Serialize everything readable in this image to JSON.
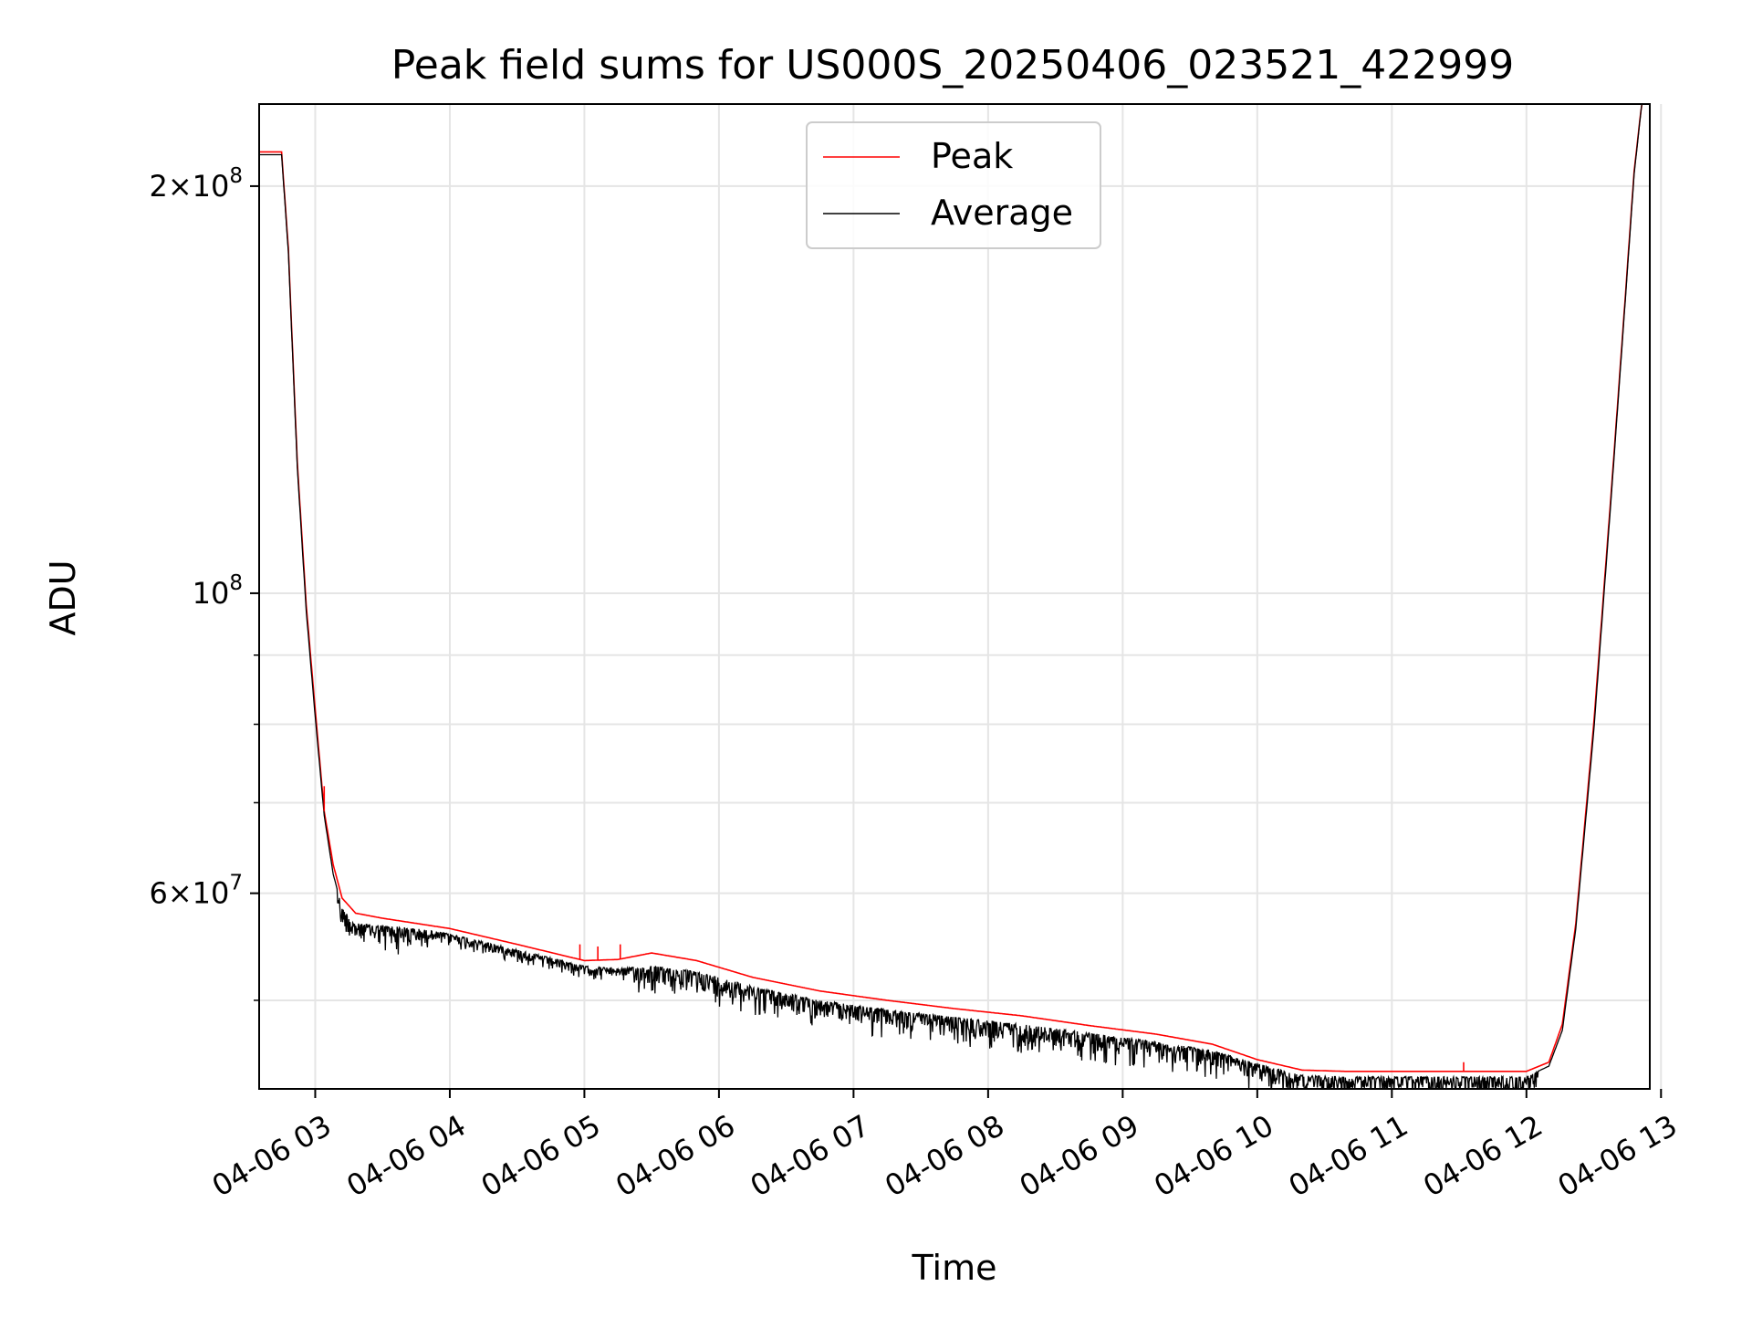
{
  "chart_data": {
    "type": "line",
    "title": "Peak field sums for US000S_20250406_023521_422999",
    "xlabel": "Time",
    "ylabel": "ADU",
    "yscale": "log",
    "grid": true,
    "legend_position": "upper center",
    "xlim": [
      "2025-04-06 02:35",
      "2025-04-06 12:55"
    ],
    "ylim": [
      43000000,
      230000000
    ],
    "x_ticks": [
      {
        "value": "2025-04-06 03:00",
        "label": "04-06 03"
      },
      {
        "value": "2025-04-06 04:00",
        "label": "04-06 04"
      },
      {
        "value": "2025-04-06 05:00",
        "label": "04-06 05"
      },
      {
        "value": "2025-04-06 06:00",
        "label": "04-06 06"
      },
      {
        "value": "2025-04-06 07:00",
        "label": "04-06 07"
      },
      {
        "value": "2025-04-06 08:00",
        "label": "04-06 08"
      },
      {
        "value": "2025-04-06 09:00",
        "label": "04-06 09"
      },
      {
        "value": "2025-04-06 10:00",
        "label": "04-06 10"
      },
      {
        "value": "2025-04-06 11:00",
        "label": "04-06 11"
      },
      {
        "value": "2025-04-06 12:00",
        "label": "04-06 12"
      },
      {
        "value": "2025-04-06 13:00",
        "label": "04-06 13"
      }
    ],
    "y_major_ticks": [
      {
        "value": 200000000,
        "mantissa": "2",
        "times": "×",
        "base": "10",
        "exp": "8"
      },
      {
        "value": 100000000,
        "mantissa": "",
        "times": "",
        "base": "10",
        "exp": "8"
      },
      {
        "value": 60000000,
        "mantissa": "6",
        "times": "×",
        "base": "10",
        "exp": "7"
      }
    ],
    "y_minor_ticks": [
      50000000,
      70000000,
      80000000,
      90000000
    ],
    "series": [
      {
        "name": "Peak",
        "color": "#ff0000",
        "points": [
          [
            "2025-04-06 02:35",
            212000000
          ],
          [
            "2025-04-06 02:45",
            212000000
          ],
          [
            "2025-04-06 02:48",
            180000000
          ],
          [
            "2025-04-06 02:52",
            125000000
          ],
          [
            "2025-04-06 02:56",
            98000000
          ],
          [
            "2025-04-06 03:00",
            82000000
          ],
          [
            "2025-04-06 03:04",
            69000000
          ],
          [
            "2025-04-06 03:08",
            63000000
          ],
          [
            "2025-04-06 03:12",
            59500000
          ],
          [
            "2025-04-06 03:18",
            58000000
          ],
          [
            "2025-04-06 03:30",
            57500000
          ],
          [
            "2025-04-06 03:45",
            57000000
          ],
          [
            "2025-04-06 04:00",
            56500000
          ],
          [
            "2025-04-06 04:30",
            55000000
          ],
          [
            "2025-04-06 05:00",
            53500000
          ],
          [
            "2025-04-06 05:15",
            53600000
          ],
          [
            "2025-04-06 05:30",
            54200000
          ],
          [
            "2025-04-06 05:50",
            53500000
          ],
          [
            "2025-04-06 06:15",
            52000000
          ],
          [
            "2025-04-06 06:45",
            50800000
          ],
          [
            "2025-04-06 07:15",
            50000000
          ],
          [
            "2025-04-06 07:45",
            49300000
          ],
          [
            "2025-04-06 08:15",
            48700000
          ],
          [
            "2025-04-06 08:45",
            47900000
          ],
          [
            "2025-04-06 09:15",
            47200000
          ],
          [
            "2025-04-06 09:40",
            46400000
          ],
          [
            "2025-04-06 10:00",
            45200000
          ],
          [
            "2025-04-06 10:20",
            44400000
          ],
          [
            "2025-04-06 10:40",
            44300000
          ],
          [
            "2025-04-06 11:00",
            44300000
          ],
          [
            "2025-04-06 11:30",
            44300000
          ],
          [
            "2025-04-06 12:00",
            44300000
          ],
          [
            "2025-04-06 12:10",
            45000000
          ],
          [
            "2025-04-06 12:16",
            48000000
          ],
          [
            "2025-04-06 12:22",
            57000000
          ],
          [
            "2025-04-06 12:30",
            80000000
          ],
          [
            "2025-04-06 12:38",
            120000000
          ],
          [
            "2025-04-06 12:44",
            165000000
          ],
          [
            "2025-04-06 12:48",
            205000000
          ],
          [
            "2025-04-06 12:52",
            235000000
          ]
        ],
        "spikes": [
          [
            "2025-04-06 03:04",
            72000000
          ],
          [
            "2025-04-06 04:58",
            55000000
          ],
          [
            "2025-04-06 05:06",
            54800000
          ],
          [
            "2025-04-06 05:16",
            55000000
          ],
          [
            "2025-04-06 11:32",
            45000000
          ]
        ]
      },
      {
        "name": "Average",
        "color": "#000000",
        "points": [
          [
            "2025-04-06 02:35",
            211000000
          ],
          [
            "2025-04-06 02:45",
            211000000
          ],
          [
            "2025-04-06 02:48",
            179000000
          ],
          [
            "2025-04-06 02:52",
            124000000
          ],
          [
            "2025-04-06 02:56",
            97000000
          ],
          [
            "2025-04-06 03:00",
            81000000
          ],
          [
            "2025-04-06 03:04",
            68500000
          ],
          [
            "2025-04-06 03:08",
            62000000
          ],
          [
            "2025-04-06 03:12",
            58500000
          ],
          [
            "2025-04-06 03:18",
            57000000
          ],
          [
            "2025-04-06 03:30",
            56800000
          ],
          [
            "2025-04-06 03:45",
            56500000
          ],
          [
            "2025-04-06 04:00",
            56000000
          ],
          [
            "2025-04-06 04:30",
            54500000
          ],
          [
            "2025-04-06 05:00",
            53000000
          ],
          [
            "2025-04-06 05:15",
            52800000
          ],
          [
            "2025-04-06 05:30",
            53000000
          ],
          [
            "2025-04-06 05:50",
            52500000
          ],
          [
            "2025-04-06 06:15",
            51200000
          ],
          [
            "2025-04-06 06:45",
            50000000
          ],
          [
            "2025-04-06 07:15",
            49200000
          ],
          [
            "2025-04-06 07:45",
            48600000
          ],
          [
            "2025-04-06 08:15",
            48000000
          ],
          [
            "2025-04-06 08:45",
            47300000
          ],
          [
            "2025-04-06 09:15",
            46600000
          ],
          [
            "2025-04-06 09:40",
            45900000
          ],
          [
            "2025-04-06 10:00",
            44900000
          ],
          [
            "2025-04-06 10:20",
            44000000
          ],
          [
            "2025-04-06 10:40",
            43900000
          ],
          [
            "2025-04-06 11:00",
            43900000
          ],
          [
            "2025-04-06 11:30",
            43900000
          ],
          [
            "2025-04-06 12:00",
            43900000
          ],
          [
            "2025-04-06 12:10",
            44700000
          ],
          [
            "2025-04-06 12:16",
            47500000
          ],
          [
            "2025-04-06 12:22",
            56500000
          ],
          [
            "2025-04-06 12:30",
            79000000
          ],
          [
            "2025-04-06 12:38",
            119000000
          ],
          [
            "2025-04-06 12:44",
            164000000
          ],
          [
            "2025-04-06 12:48",
            204000000
          ],
          [
            "2025-04-06 12:52",
            235000000
          ]
        ],
        "noise_ranges": [
          {
            "from": "2025-04-06 03:10",
            "to": "2025-04-06 03:50",
            "min_ratio": 0.97
          },
          {
            "from": "2025-04-06 03:50",
            "to": "2025-04-06 05:20",
            "min_ratio": 0.985
          },
          {
            "from": "2025-04-06 05:20",
            "to": "2025-04-06 10:20",
            "min_ratio": 0.97
          },
          {
            "from": "2025-04-06 10:20",
            "to": "2025-04-06 12:05",
            "min_ratio": 0.975
          }
        ]
      }
    ]
  }
}
